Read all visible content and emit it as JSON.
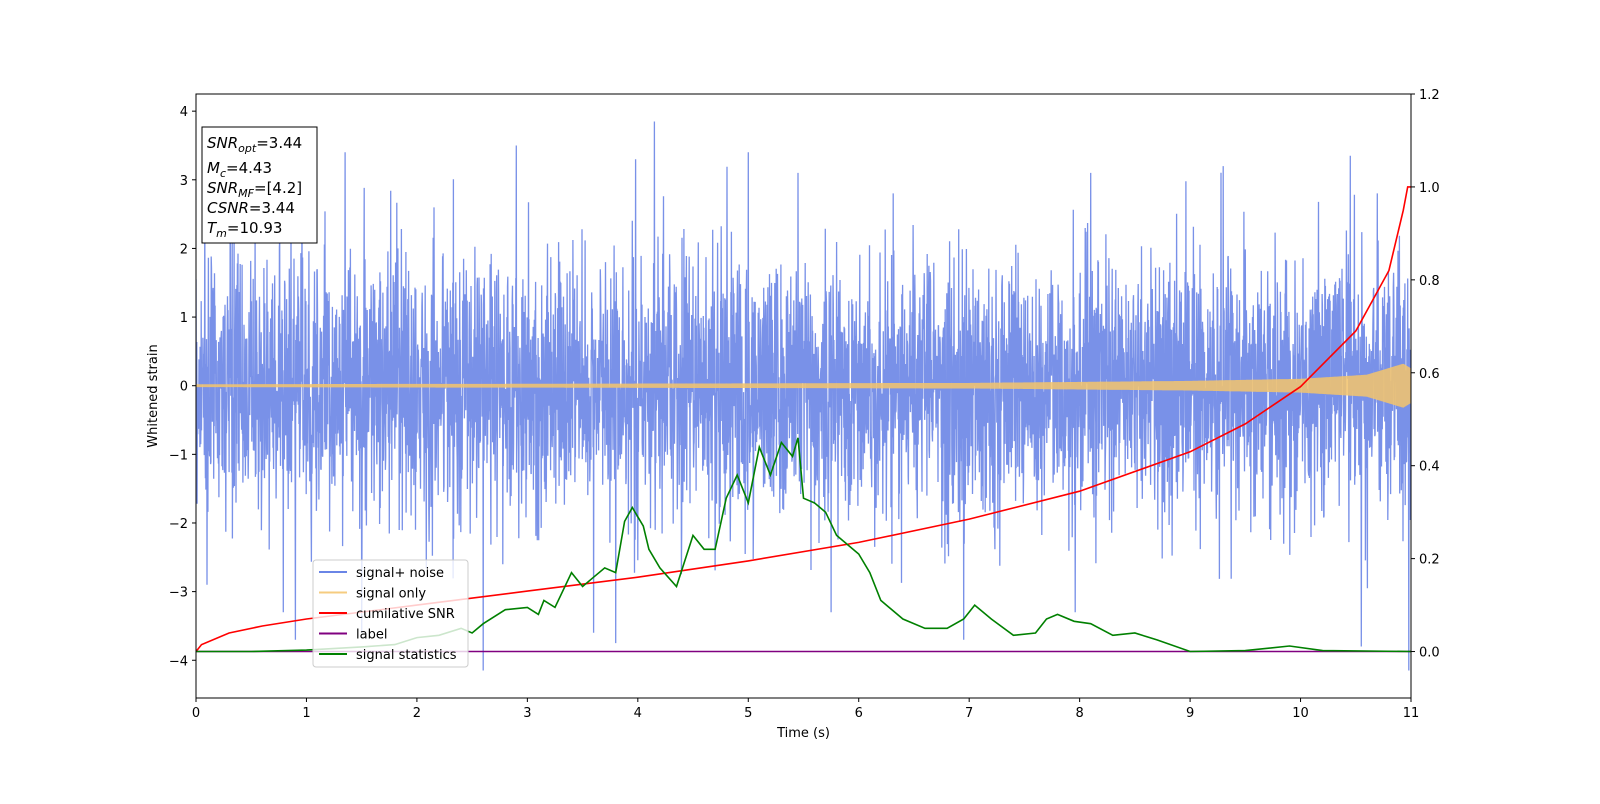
{
  "chart_data": {
    "type": "line",
    "xlabel": "Time (s)",
    "ylabel": "Whitened strain",
    "xlim": [
      0,
      11
    ],
    "ylim": [
      -4.55,
      4.25
    ],
    "y2lim": [
      -0.1,
      1.2
    ],
    "x_ticks": [
      "0",
      "1",
      "2",
      "3",
      "4",
      "5",
      "6",
      "7",
      "8",
      "9",
      "10",
      "11"
    ],
    "y_ticks": [
      "4",
      "3",
      "2",
      "1",
      "0",
      "−1",
      "−2",
      "−3",
      "−4"
    ],
    "y2_ticks": [
      "1.2",
      "1.0",
      "0.8",
      "0.6",
      "0.4",
      "0.2",
      "0.0"
    ],
    "grid": false,
    "legend_position": "lower-left",
    "annotations": {
      "snr_opt": {
        "sym": "SNR",
        "sub": "opt",
        "value": "=3.44"
      },
      "mc": {
        "sym": "M",
        "sub": "c",
        "value": "=4.43"
      },
      "snr_mf": {
        "sym": "SNR",
        "sub": "MF",
        "value": "=[4.2]"
      },
      "csnr": {
        "sym": "CSNR",
        "sub": "",
        "value": "=3.44"
      },
      "tm": {
        "sym": "T",
        "sub": "m",
        "value": "=10.93"
      }
    },
    "series": [
      {
        "name": "signal+ noise",
        "axis": "left",
        "color": "#6a85e6",
        "kind": "noise",
        "sample_rate_hz": 400,
        "std": 0.95,
        "peaks": [
          [
            0.08,
            2.8
          ],
          [
            0.1,
            -2.9
          ],
          [
            0.9,
            -3.7
          ],
          [
            1.35,
            3.4
          ],
          [
            1.5,
            -3.6
          ],
          [
            2.6,
            -4.15
          ],
          [
            2.9,
            3.5
          ],
          [
            3.6,
            -3.6
          ],
          [
            3.8,
            -3.75
          ],
          [
            3.98,
            3.3
          ],
          [
            4.15,
            3.85
          ],
          [
            5.0,
            3.4
          ],
          [
            5.45,
            3.1
          ],
          [
            5.75,
            -3.3
          ],
          [
            6.95,
            -3.7
          ],
          [
            8.1,
            3.1
          ],
          [
            9.3,
            3.2
          ],
          [
            10.45,
            3.35
          ],
          [
            10.55,
            -3.8
          ],
          [
            10.98,
            -4.15
          ]
        ]
      },
      {
        "name": "signal only",
        "axis": "left",
        "color": "#f5c46b",
        "kind": "chirp",
        "amplitude_envelope": [
          [
            0,
            0.02
          ],
          [
            4,
            0.03
          ],
          [
            7,
            0.04
          ],
          [
            9,
            0.07
          ],
          [
            10,
            0.1
          ],
          [
            10.6,
            0.16
          ],
          [
            10.93,
            0.32
          ],
          [
            11,
            0.25
          ]
        ]
      },
      {
        "name": "cumilative SNR",
        "axis": "right",
        "color": "#ff0000",
        "kind": "line",
        "points": [
          [
            0,
            0.0
          ],
          [
            0.05,
            0.015
          ],
          [
            0.3,
            0.04
          ],
          [
            0.6,
            0.055
          ],
          [
            1,
            0.07
          ],
          [
            2,
            0.1
          ],
          [
            3,
            0.13
          ],
          [
            4,
            0.16
          ],
          [
            5,
            0.195
          ],
          [
            6,
            0.235
          ],
          [
            7,
            0.285
          ],
          [
            8,
            0.345
          ],
          [
            9,
            0.43
          ],
          [
            9.5,
            0.49
          ],
          [
            10,
            0.57
          ],
          [
            10.5,
            0.69
          ],
          [
            10.8,
            0.82
          ],
          [
            10.93,
            0.95
          ],
          [
            10.97,
            1.0
          ],
          [
            11,
            1.0
          ]
        ]
      },
      {
        "name": "label",
        "axis": "right",
        "color": "#800080",
        "kind": "line",
        "points": [
          [
            0,
            0.0
          ],
          [
            11,
            0.0
          ]
        ]
      },
      {
        "name": "signal statistics",
        "axis": "right",
        "color": "#008000",
        "kind": "line",
        "points": [
          [
            0,
            0.0
          ],
          [
            0.5,
            0.0
          ],
          [
            1.0,
            0.003
          ],
          [
            1.5,
            0.01
          ],
          [
            1.8,
            0.015
          ],
          [
            2.0,
            0.03
          ],
          [
            2.2,
            0.035
          ],
          [
            2.4,
            0.05
          ],
          [
            2.5,
            0.04
          ],
          [
            2.6,
            0.06
          ],
          [
            2.8,
            0.09
          ],
          [
            3.0,
            0.095
          ],
          [
            3.1,
            0.08
          ],
          [
            3.15,
            0.11
          ],
          [
            3.25,
            0.095
          ],
          [
            3.3,
            0.12
          ],
          [
            3.4,
            0.17
          ],
          [
            3.5,
            0.14
          ],
          [
            3.6,
            0.16
          ],
          [
            3.7,
            0.18
          ],
          [
            3.8,
            0.17
          ],
          [
            3.88,
            0.28
          ],
          [
            3.95,
            0.31
          ],
          [
            4.05,
            0.27
          ],
          [
            4.1,
            0.22
          ],
          [
            4.2,
            0.18
          ],
          [
            4.35,
            0.14
          ],
          [
            4.5,
            0.25
          ],
          [
            4.6,
            0.22
          ],
          [
            4.7,
            0.22
          ],
          [
            4.8,
            0.33
          ],
          [
            4.9,
            0.38
          ],
          [
            5.0,
            0.32
          ],
          [
            5.1,
            0.44
          ],
          [
            5.2,
            0.38
          ],
          [
            5.3,
            0.45
          ],
          [
            5.4,
            0.42
          ],
          [
            5.45,
            0.46
          ],
          [
            5.5,
            0.33
          ],
          [
            5.6,
            0.32
          ],
          [
            5.7,
            0.3
          ],
          [
            5.8,
            0.25
          ],
          [
            5.9,
            0.23
          ],
          [
            6.0,
            0.21
          ],
          [
            6.1,
            0.17
          ],
          [
            6.2,
            0.11
          ],
          [
            6.4,
            0.07
          ],
          [
            6.6,
            0.05
          ],
          [
            6.8,
            0.05
          ],
          [
            6.95,
            0.07
          ],
          [
            7.05,
            0.1
          ],
          [
            7.2,
            0.07
          ],
          [
            7.4,
            0.035
          ],
          [
            7.6,
            0.04
          ],
          [
            7.7,
            0.07
          ],
          [
            7.8,
            0.08
          ],
          [
            7.95,
            0.065
          ],
          [
            8.1,
            0.06
          ],
          [
            8.3,
            0.035
          ],
          [
            8.5,
            0.04
          ],
          [
            8.7,
            0.025
          ],
          [
            9.0,
            0.0
          ],
          [
            9.5,
            0.002
          ],
          [
            9.9,
            0.012
          ],
          [
            10.2,
            0.002
          ],
          [
            11,
            0.0
          ]
        ]
      }
    ]
  }
}
